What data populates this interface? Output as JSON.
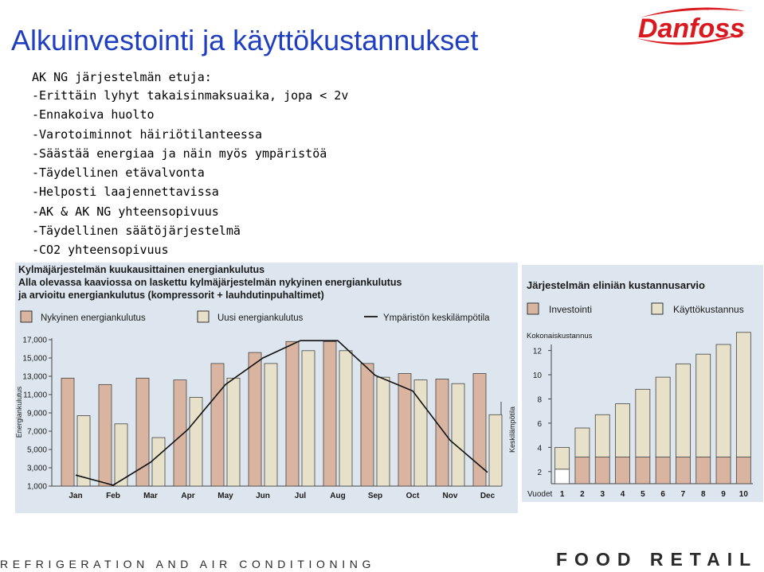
{
  "slide": {
    "title": "Alkuinvestointi ja käyttökustannukset",
    "subtitle": "AK NG järjestelmän etuja:",
    "bullets": [
      "-Erittäin lyhyt takaisinmaksuaika, jopa < 2v",
      "-Ennakoiva huolto",
      "-Varotoiminnot häiriötilanteessa",
      "-Säästää energiaa ja näin myös ympäristöä",
      "-Täydellinen etävalvonta",
      "-Helposti laajennettavissa",
      "-AK & AK NG yhteensopivuus",
      "-Täydellinen säätöjärjestelmä",
      "-CO2 yhteensopivuus"
    ],
    "logo_text": "Danfoss",
    "footer_left": "REFRIGERATION AND AIR CONDITIONING",
    "footer_right": "FOOD RETAIL",
    "colors": {
      "title": "#1f3fbf",
      "logo": "#d9191f",
      "panel": "#dde6ee"
    }
  },
  "chart_data": [
    {
      "type": "bar",
      "title": "Kylmäjärjestelmän kuukausittainen energiankulutus",
      "subtitle_lines": [
        "Alla olevassa kaaviossa on laskettu kylmäjärjestelmän nykyinen energiankulutus",
        "ja arvioitu energiankulutus (kompressorit + lauhdutinpuhaltimet)"
      ],
      "ylabel": "Energiankulutus",
      "y2label": "Keskilämpötila",
      "ylim": [
        1000,
        17000
      ],
      "y_ticks": [
        "17,000",
        "15,000",
        "13,000",
        "11,000",
        "9,000",
        "7,000",
        "5,000",
        "3,000",
        "1,000"
      ],
      "legend": [
        "Nykyinen energiankulutus",
        "Uusi energiankulutus",
        "Ympäristön keskilämpötila"
      ],
      "legend_placement": "top",
      "categories": [
        "Jan",
        "Feb",
        "Mar",
        "Apr",
        "May",
        "Jun",
        "Jul",
        "Aug",
        "Sep",
        "Oct",
        "Nov",
        "Dec"
      ],
      "series": [
        {
          "name": "Nykyinen energiankulutus",
          "color": "#d9b5a1",
          "values": [
            12800,
            12100,
            12800,
            12600,
            14400,
            15600,
            16800,
            16800,
            14400,
            13300,
            12700,
            13300
          ]
        },
        {
          "name": "Uusi energiankulutus",
          "color": "#e6e1c8",
          "values": [
            8700,
            7800,
            6300,
            10700,
            12800,
            14400,
            15800,
            15800,
            12900,
            12600,
            12200,
            8800
          ]
        },
        {
          "name": "Ympäristön keskilämpötila",
          "type": "line",
          "color": "#1a1a1a",
          "values": [
            2200,
            1100,
            3600,
            7200,
            12100,
            15000,
            16900,
            16900,
            13100,
            11400,
            6000,
            2500
          ]
        }
      ]
    },
    {
      "type": "bar",
      "stacked": true,
      "title": "Järjestelmän eliniän kustannusarvio",
      "legend": [
        "Investointi",
        "Käyttökustannus"
      ],
      "legend_placement": "top",
      "ylabel": "Kokonaiskustannus",
      "xlabel": "Vuodet",
      "ylim": [
        1,
        12.5
      ],
      "y_ticks": [
        "12",
        "10",
        "8",
        "6",
        "4",
        "2"
      ],
      "categories": [
        "1",
        "2",
        "3",
        "4",
        "5",
        "6",
        "7",
        "8",
        "9",
        "10"
      ],
      "series": [
        {
          "name": "Investointi",
          "color": "#d9b5a1",
          "values": [
            1.2,
            2.2,
            2.2,
            2.2,
            2.2,
            2.2,
            2.2,
            2.2,
            2.2,
            2.2
          ]
        },
        {
          "name": "Käyttökustannus",
          "color": "#e6e1c8",
          "values": [
            1.8,
            2.4,
            3.5,
            4.4,
            5.6,
            6.6,
            7.7,
            8.5,
            9.3,
            10.3
          ]
        }
      ]
    }
  ]
}
